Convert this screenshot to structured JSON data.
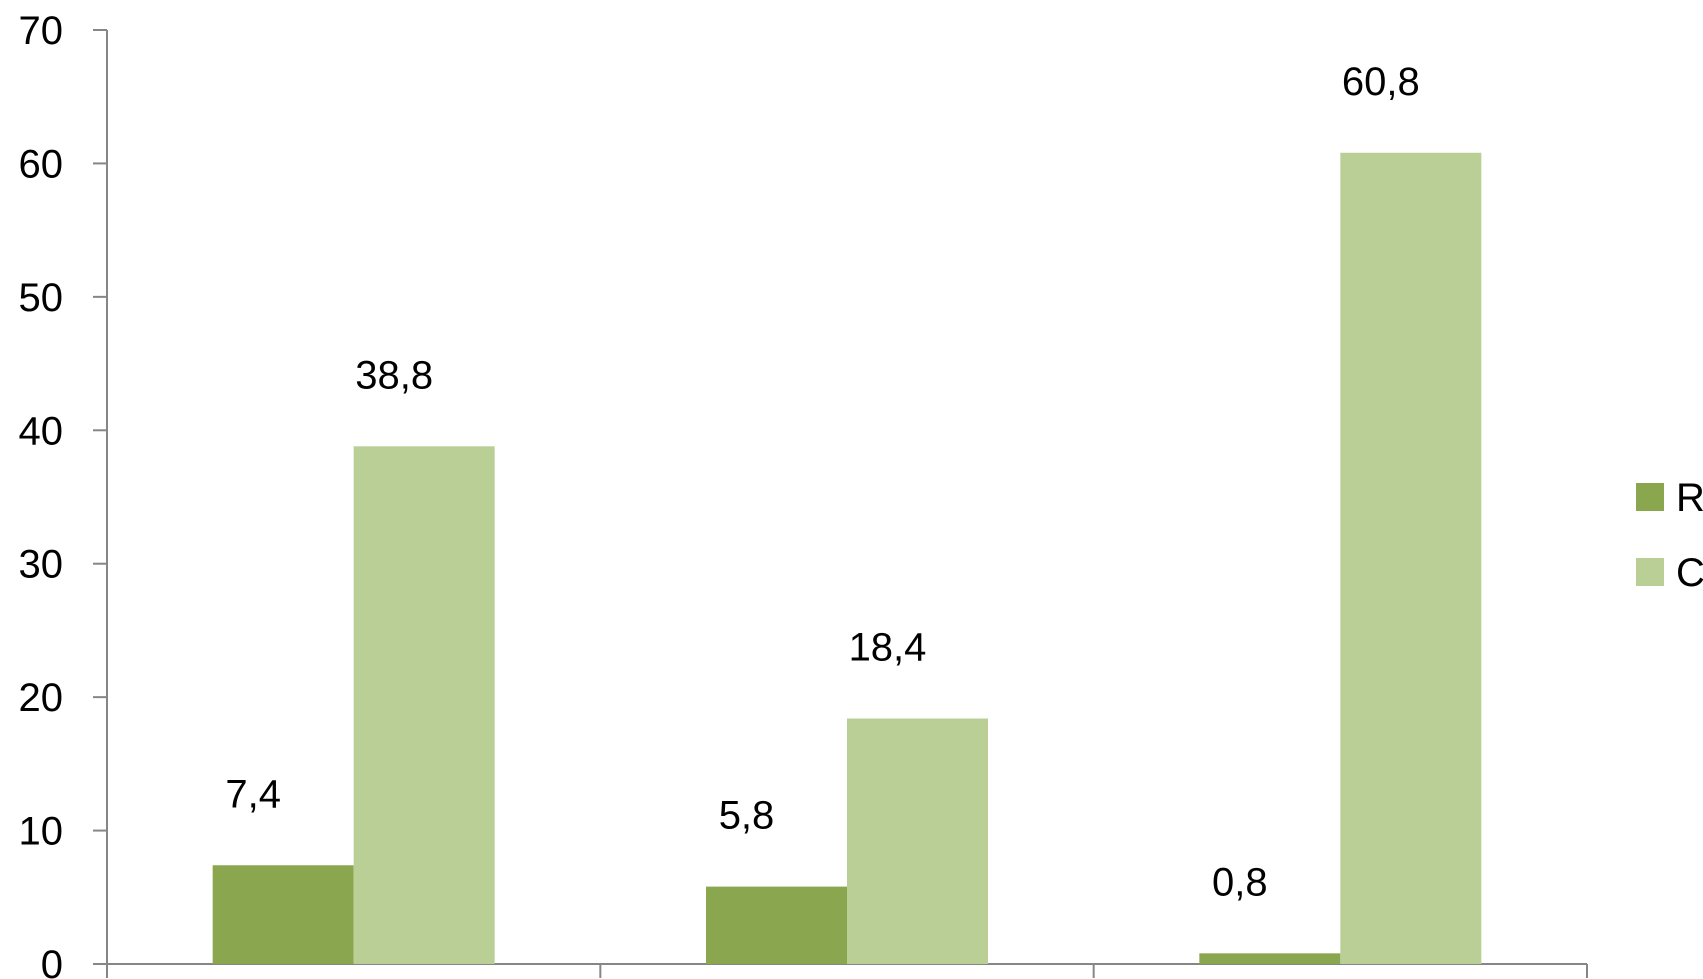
{
  "chart_data": {
    "type": "bar",
    "categories": [
      "",
      "",
      ""
    ],
    "series": [
      {
        "name": "R",
        "values": [
          7.4,
          5.8,
          0.8
        ],
        "color": "#8aa64e"
      },
      {
        "name": "C",
        "values": [
          38.8,
          18.4,
          60.8
        ],
        "color": "#b9cf96"
      }
    ],
    "data_labels": [
      [
        "7,4",
        "5,8",
        "0,8"
      ],
      [
        "38,8",
        "18,4",
        "60,8"
      ]
    ],
    "ylim": [
      0,
      70
    ],
    "y_ticks": [
      0,
      10,
      20,
      30,
      40,
      50,
      60,
      70
    ],
    "title": "",
    "xlabel": "",
    "ylabel": "",
    "grid": false,
    "legend_position": "right",
    "axis_color": "#868686"
  }
}
